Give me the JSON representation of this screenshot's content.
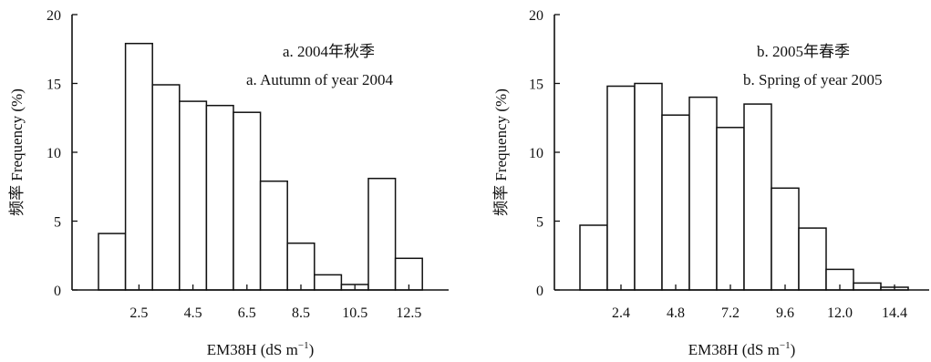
{
  "chart_data": [
    {
      "type": "bar",
      "subtitle_cn": "a. 2004年秋季",
      "subtitle_en": "a. Autumn of year 2004",
      "xlabel": "EM38H (dS m",
      "xlabel_sup": "−1",
      "xlabel_end": ")",
      "ylabel": "频率 Frequency (%)",
      "ylim": [
        0,
        20
      ],
      "yticks": [
        "0",
        "5",
        "10",
        "15",
        "20"
      ],
      "xtick_labels": [
        "2.5",
        "4.5",
        "6.5",
        "8.5",
        "10.5",
        "12.5"
      ],
      "xtick_bins": [
        1,
        3,
        5,
        7,
        9,
        11
      ],
      "values": [
        4.1,
        17.9,
        14.9,
        13.7,
        13.4,
        12.9,
        7.9,
        3.4,
        1.1,
        0.4,
        8.1,
        2.3
      ]
    },
    {
      "type": "bar",
      "subtitle_cn": "b. 2005年春季",
      "subtitle_en": "b. Spring of year 2005",
      "xlabel": "EM38H (dS m",
      "xlabel_sup": "−1",
      "xlabel_end": ")",
      "ylabel": "频率 Frequency (%)",
      "ylim": [
        0,
        20
      ],
      "yticks": [
        "0",
        "5",
        "10",
        "15",
        "20"
      ],
      "xtick_labels": [
        "2.4",
        "4.8",
        "7.2",
        "9.6",
        "12.0",
        "14.4"
      ],
      "xtick_bins": [
        1,
        3,
        5,
        7,
        9,
        11
      ],
      "values": [
        4.7,
        14.8,
        15.0,
        12.7,
        14.0,
        11.8,
        13.5,
        7.4,
        4.5,
        1.5,
        0.5,
        0.2
      ]
    }
  ]
}
